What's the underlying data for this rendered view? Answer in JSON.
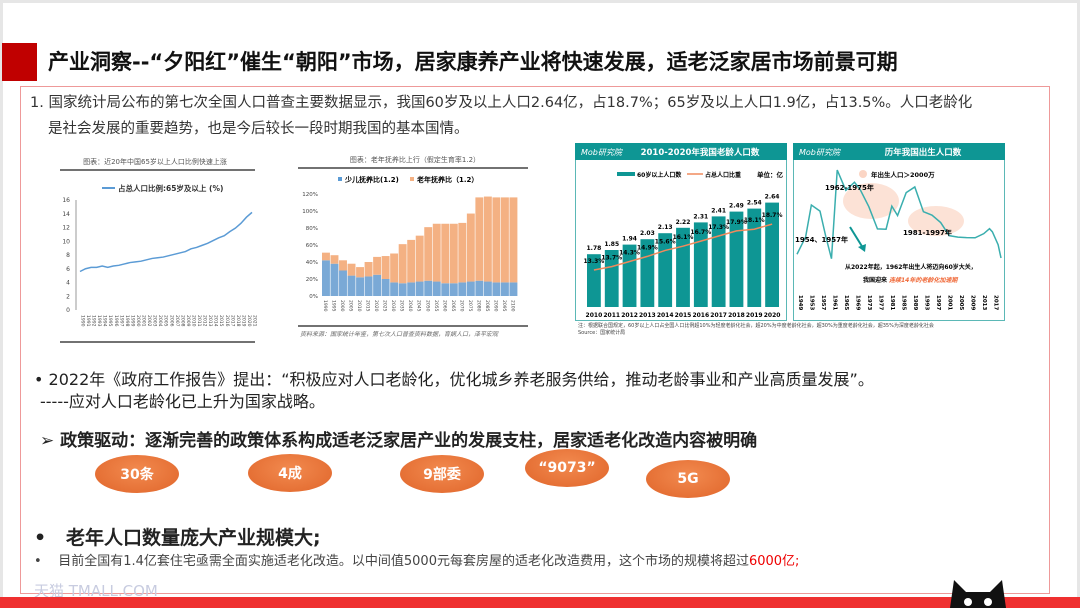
{
  "title": "产业洞察--“夕阳红”催生“朝阳”市场，居家康养产业将快速发展，适老泛家居市场前景可期",
  "intro": {
    "line1": "1. 国家统计局公布的第七次全国人口普查主要数据显示，我国60岁及以上人口2.64亿，占18.7%；65岁及以上人口1.9亿，占13.5%。人口老龄化",
    "line2": "是社会发展的重要趋势，也是今后较长一段时期我国的基本国情。"
  },
  "report": {
    "line1": "• 2022年《政府工作报告》提出：“积极应对人口老龄化，优化城乡养老服务供给，推动老龄事业和产业高质量发展”。",
    "line2": "-----应对人口老龄化已上升为国家战略。"
  },
  "policy": "➢  政策驱动：逐渐完善的政策体系构成适老泛家居产业的发展支柱，居家适老化改造内容被明确",
  "ovals": [
    "30条",
    "4成",
    "9部委",
    "“9073”",
    "5G"
  ],
  "market": {
    "heading": "老年人口数量庞大产业规模大;",
    "text": "目前全国有1.4亿套住宅亟需全面实施适老化改造。以中间值5000元每套房屋的适老化改造费用，这个市场的规模将超过",
    "highlight": "6000亿;"
  },
  "watermark": "天猫 TMALL.COM",
  "colors": {
    "accent": "#c00000",
    "teal": "#0e9694",
    "orange": "#e8733a",
    "bar": "#ef3030"
  },
  "chart_data": [
    {
      "type": "line",
      "title": "图表：近20年中国65岁以上人口比例快速上涨",
      "series": [
        {
          "name": "占总人口比例:65岁及以上 (%)",
          "x": [
            1990,
            1991,
            1992,
            1993,
            1994,
            1995,
            1996,
            1997,
            1998,
            1999,
            2000,
            2001,
            2002,
            2003,
            2004,
            2005,
            2006,
            2007,
            2008,
            2009,
            2010,
            2011,
            2012,
            2013,
            2014,
            2015,
            2016,
            2017,
            2018,
            2019,
            2020,
            2021
          ],
          "values": [
            5.6,
            6.0,
            6.2,
            6.2,
            6.4,
            6.2,
            6.4,
            6.5,
            6.7,
            6.9,
            7.0,
            7.1,
            7.3,
            7.5,
            7.6,
            7.7,
            7.9,
            8.1,
            8.3,
            8.5,
            8.9,
            9.1,
            9.4,
            9.7,
            10.1,
            10.5,
            10.8,
            11.4,
            11.9,
            12.6,
            13.5,
            14.2
          ]
        }
      ],
      "ylim": [
        0,
        16
      ],
      "yticks": [
        0,
        2,
        4,
        6,
        8,
        10,
        12,
        14,
        16
      ]
    },
    {
      "type": "bar",
      "stacked": true,
      "title": "图表：老年抚养比上行（假定生育率1.2）",
      "source": "资料来源：国家统计年鉴，第七次人口普查资料数据，育娲人口，泽平宏观",
      "categories": [
        1990,
        1995,
        2000,
        2005,
        2010,
        2015,
        2020,
        2025,
        2030,
        2035,
        2040,
        2045,
        2050,
        2055,
        2060,
        2065,
        2070,
        2075,
        2080,
        2085,
        2090,
        2095,
        2100
      ],
      "series": [
        {
          "name": "少儿抚养比(1.2)",
          "values": [
            42,
            38,
            30,
            24,
            22,
            23,
            25,
            20,
            16,
            15,
            16,
            17,
            18,
            17,
            15,
            15,
            16,
            17,
            18,
            17,
            16,
            16,
            16
          ]
        },
        {
          "name": "老年抚养比（1.2）",
          "values": [
            9,
            10,
            12,
            14,
            12,
            17,
            21,
            27,
            34,
            46,
            50,
            54,
            63,
            68,
            70,
            70,
            70,
            80,
            98,
            100,
            100,
            100,
            100
          ]
        }
      ],
      "ylim": [
        0,
        120
      ],
      "yticks": [
        "0%",
        "20%",
        "40%",
        "60%",
        "80%",
        "100%",
        "120%"
      ]
    },
    {
      "type": "bar",
      "logo": "Mob研究院",
      "title": "2010-2020年我国老龄人口数",
      "unit": "单位：亿",
      "categories": [
        "2010",
        "2011",
        "2012",
        "2013",
        "2014",
        "2015",
        "2016",
        "2017",
        "2018",
        "2019",
        "2020"
      ],
      "series": [
        {
          "name": "60岁以上人口数",
          "values": [
            1.78,
            1.85,
            1.94,
            2.03,
            2.13,
            2.22,
            2.31,
            2.41,
            2.49,
            2.54,
            2.64
          ]
        },
        {
          "name": "占总人口比重",
          "type": "line",
          "labels": [
            "13.3%",
            "13.7%",
            "14.3%",
            "14.9%",
            "15.6%",
            "16.1%",
            "16.7%",
            "17.3%",
            "17.9%",
            "18.1%",
            "18.7%"
          ],
          "values": [
            13.3,
            13.7,
            14.3,
            14.9,
            15.6,
            16.1,
            16.7,
            17.3,
            17.9,
            18.1,
            18.7
          ]
        }
      ]
    },
    {
      "type": "line",
      "logo": "Mob研究院",
      "title": "历年我国出生人口数",
      "legend": "年出生人口＞2000万",
      "annotations": [
        "1962-1975年",
        "1954、1957年",
        "1981-1997年",
        "从2022年起，1962年出生人将迈向60岁大关，",
        "我国迎来",
        "连续14年的老龄化加速期"
      ],
      "xticks": [
        "1949",
        "1953",
        "1957",
        "1961",
        "1965",
        "1969",
        "1973",
        "1977",
        "1981",
        "1985",
        "1989",
        "1993",
        "1997",
        "2001",
        "2005",
        "2009",
        "2013",
        "2017"
      ],
      "x": [
        1949,
        1952,
        1954,
        1957,
        1959,
        1961,
        1963,
        1966,
        1969,
        1971,
        1974,
        1977,
        1980,
        1982,
        1984,
        1987,
        1990,
        1993,
        1996,
        1999,
        2002,
        2005,
        2008,
        2011,
        2014,
        2016,
        2017,
        2019,
        2020
      ],
      "values": [
        1275,
        1622,
        2260,
        2138,
        1635,
        1187,
        2959,
        2554,
        2715,
        2567,
        2226,
        1783,
        1776,
        2237,
        2050,
        2508,
        2621,
        2126,
        2057,
        1909,
        1647,
        1617,
        1608,
        1604,
        1687,
        1786,
        1723,
        1465,
        1200
      ]
    }
  ],
  "chart_note": {
    "line1": "注：根据联合国规定，60岁以上人口占全国人口比例超10%为轻度老龄化社会，超20%为中度老龄化社会，超30%为重度老龄化社会，超35%为深度老龄化社会",
    "line2": "Source：国家统计局"
  }
}
